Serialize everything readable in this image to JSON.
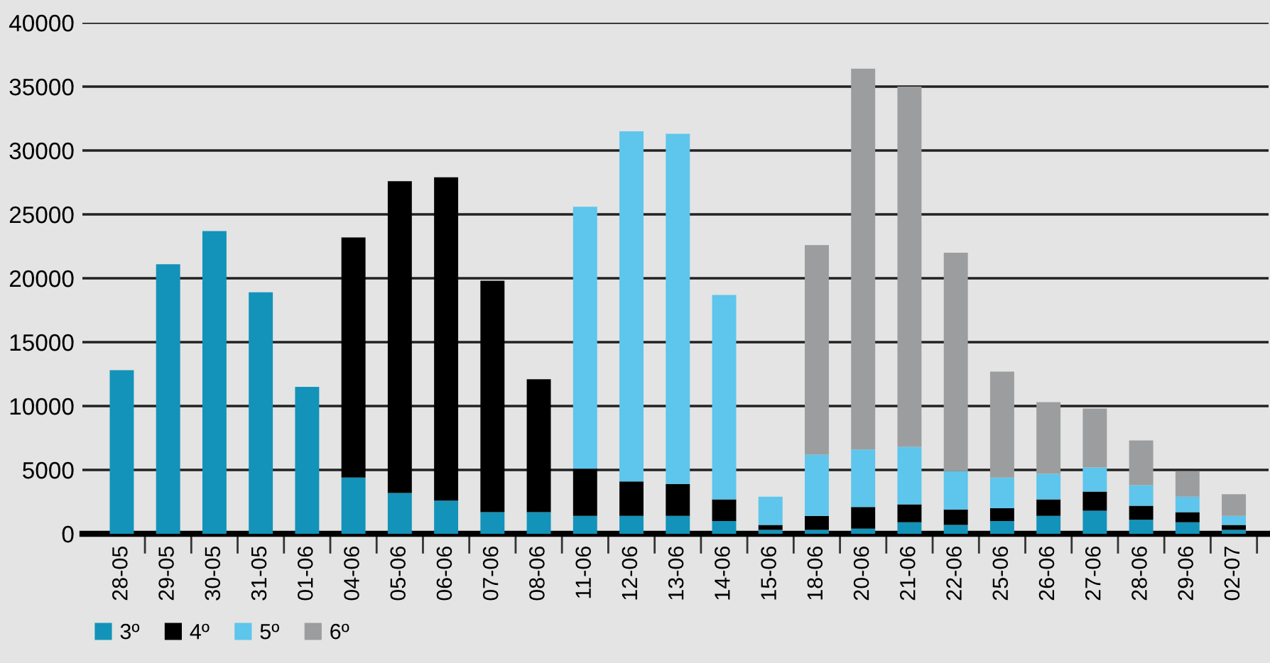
{
  "chart_data": {
    "type": "bar",
    "stacked": true,
    "categories": [
      "28-05",
      "29-05",
      "30-05",
      "31-05",
      "01-06",
      "04-06",
      "05-06",
      "06-06",
      "07-06",
      "08-06",
      "11-06",
      "12-06",
      "13-06",
      "14-06",
      "15-06",
      "18-06",
      "20-06",
      "21-06",
      "22-06",
      "25-06",
      "26-06",
      "27-06",
      "28-06",
      "29-06",
      "02-07"
    ],
    "series": [
      {
        "name": "3º",
        "color": "#1393b9",
        "values": [
          12800,
          21100,
          23700,
          18900,
          11500,
          4400,
          3200,
          2600,
          1700,
          1700,
          1400,
          1400,
          1400,
          1000,
          300,
          300,
          400,
          900,
          700,
          1000,
          1400,
          1800,
          1100,
          900,
          300
        ]
      },
      {
        "name": "4º",
        "color": "#000000",
        "values": [
          null,
          null,
          null,
          null,
          null,
          18800,
          24400,
          25300,
          18100,
          10400,
          3700,
          2700,
          2500,
          1700,
          400,
          1100,
          1700,
          1400,
          1200,
          1000,
          1300,
          1500,
          1100,
          800,
          400
        ]
      },
      {
        "name": "5º",
        "color": "#5ec5ec",
        "values": [
          null,
          null,
          null,
          null,
          null,
          null,
          null,
          null,
          null,
          null,
          20500,
          27400,
          27400,
          16000,
          2200,
          4800,
          4500,
          4500,
          3000,
          2400,
          2000,
          1900,
          1600,
          1200,
          700
        ]
      },
      {
        "name": "6º",
        "color": "#9c9d9e",
        "values": [
          null,
          null,
          null,
          null,
          null,
          null,
          null,
          null,
          null,
          null,
          null,
          null,
          null,
          null,
          null,
          16400,
          29800,
          28200,
          17100,
          8300,
          5600,
          4600,
          3500,
          2000,
          1700
        ]
      }
    ],
    "ylim": [
      0,
      40000
    ],
    "yticks": [
      0,
      5000,
      10000,
      15000,
      20000,
      25000,
      30000,
      35000,
      40000
    ],
    "grid": "y",
    "legend": "bottom left"
  }
}
